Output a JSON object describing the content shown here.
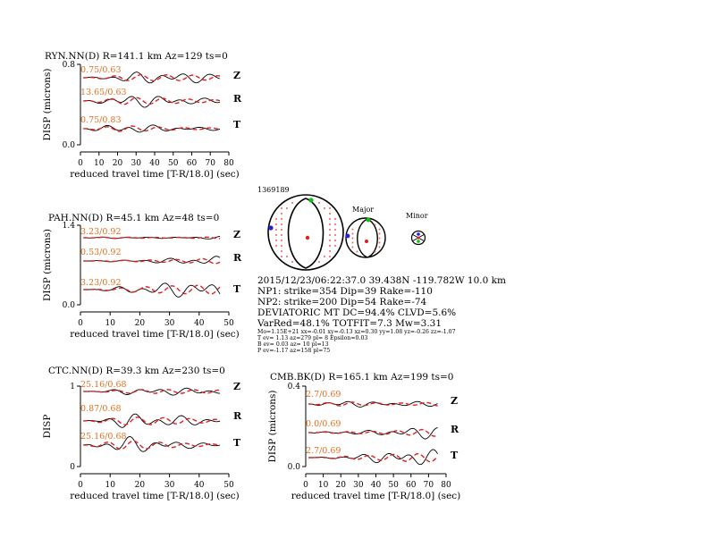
{
  "chart_data": [
    {
      "type": "line",
      "title": "RYN.NN(D) R=141.1 km Az=129 ts=0",
      "ylabel": "DISP (microns)",
      "xlabel": "reduced travel time [T-R/18.0] (sec)",
      "xlim": [
        0,
        80
      ],
      "ylim": [
        0.0,
        0.8
      ],
      "xticks": [
        "0",
        "10",
        "20",
        "30",
        "40",
        "50",
        "60",
        "70",
        "80"
      ],
      "yticks": [
        "0.0",
        "0.8"
      ],
      "series": [
        {
          "name": "Z",
          "ratio_label": "0.75/0.63",
          "amp": 0.05
        },
        {
          "name": "R",
          "ratio_label": "13.65/0.63",
          "amp": 0.06
        },
        {
          "name": "T",
          "ratio_label": "0.75/0.83",
          "amp": 0.07
        }
      ]
    },
    {
      "type": "line",
      "title": "PAH.NN(D) R=45.1 km Az=48 ts=0",
      "ylabel": "DISP (microns)",
      "xlabel": "reduced travel time [T-R/18.0] (sec)",
      "xlim": [
        0,
        50
      ],
      "ylim": [
        0.0,
        1.4
      ],
      "xticks": [
        "0",
        "10",
        "20",
        "30",
        "40",
        "50"
      ],
      "yticks": [
        "0.0",
        "1.4"
      ],
      "series": [
        {
          "name": "Z",
          "ratio_label": "3.23/0.92",
          "amp": 0.05
        },
        {
          "name": "R",
          "ratio_label": "0.53/0.92",
          "amp": 0.09
        },
        {
          "name": "T",
          "ratio_label": "3.23/0.92",
          "amp": 0.13
        }
      ]
    },
    {
      "type": "line",
      "title": "CTC.NN(D) R=39.3 km Az=230 ts=0",
      "ylabel": "DISP",
      "xlabel": "reduced travel time [T-R/18.0] (sec)",
      "xlim": [
        0,
        50
      ],
      "ylim": [
        0,
        1
      ],
      "xticks": [
        "0",
        "10",
        "20",
        "30",
        "40",
        "50"
      ],
      "yticks": [
        "0",
        "1"
      ],
      "series": [
        {
          "name": "Z",
          "ratio_label": "25.16/0.68",
          "amp": 0.04
        },
        {
          "name": "R",
          "ratio_label": "0.87/0.68",
          "amp": 0.08
        },
        {
          "name": "T",
          "ratio_label": "25.16/0.68",
          "amp": 0.12
        }
      ]
    },
    {
      "type": "line",
      "title": "CMB.BK(D) R=165.1 km Az=199 ts=0",
      "ylabel": "DISP (microns)",
      "xlabel": "reduced travel time [T-R/18.0] (sec)",
      "xlim": [
        0,
        80
      ],
      "ylim": [
        0.0,
        0.4
      ],
      "xticks": [
        "0",
        "10",
        "20",
        "30",
        "40",
        "50",
        "60",
        "70",
        "80"
      ],
      "yticks": [
        "0.0",
        "0.4"
      ],
      "series": [
        {
          "name": "Z",
          "ratio_label": "2.7/0.69",
          "amp": 0.04
        },
        {
          "name": "R",
          "ratio_label": "0.0/0.69",
          "amp": 0.04
        },
        {
          "name": "T",
          "ratio_label": "2.7/0.69",
          "amp": 0.035
        }
      ]
    }
  ],
  "mechanism": {
    "event_id": "1369189",
    "major_label": "Major",
    "minor_label": "Minor",
    "line1": "2015/12/23/06:22:37.0 39.438N -119.782W 10.0 km",
    "line2": "NP1: strike=354 Dip=39 Rake=-110",
    "line3": "NP2: strike=200 Dip=54 Rake=-74",
    "line4": "DEVIATORIC MT DC=94.4% CLVD=5.6%",
    "line5": "VarRed=48.1% TOTFIT=7.3 Mw=3.31",
    "small1": "Mo=1.15E+21 xx=-0.01 xy=-0.13 xz=0.30 yy=1.08 yz=-0.26 zz=-1.07",
    "small2": "T ev= 1.13 az=279 pl= 8 Epsilon=0.03",
    "small3": "B ev= 0.03 az= 10 pl=13",
    "small4": "P ev=-1.17 az=158 pl=75"
  },
  "colors": {
    "observed": "#000000",
    "synthetic": "#e02020",
    "ratio_text": "#e07020",
    "t_axis": "#2020e0",
    "b_axis": "#10c010",
    "p_axis": "#e02020"
  }
}
